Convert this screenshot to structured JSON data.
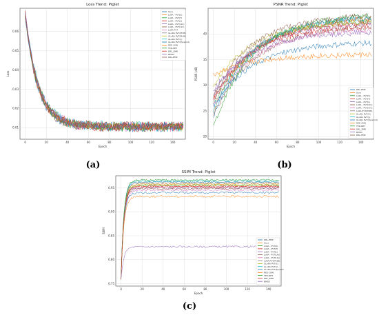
{
  "chart_data": [
    {
      "type": "line",
      "title": "Loss Trend: Piglet",
      "xlabel": "Epoch",
      "ylabel": "Loss",
      "xlim": [
        -5,
        152
      ],
      "ylim": [
        0.004,
        0.072
      ],
      "xticks": [
        0,
        20,
        40,
        60,
        80,
        100,
        120,
        140
      ],
      "yticks": [
        0.01,
        0.02,
        0.03,
        0.04,
        0.05,
        0.06
      ],
      "ytick_labels": [
        "0.01",
        "0.02",
        "0.03",
        "0.04",
        "0.05",
        "0.06"
      ],
      "grid": true,
      "legend_position": "top-right",
      "legend": [
        "Ours",
        "LoRA - PVT(S)",
        "LoRA - PVT(T)",
        "LoRA - PVT(L)",
        "LoRA - PVT(Uni)",
        "LoRA - PVT(Uni)",
        "LoRA PVT",
        "GLoRA PVT(Pt3B)",
        "GLoRA PVT(Pt3B)",
        "GLoRA PVT(L)",
        "GLoRA PVT(Pyramid)",
        "RED CNN",
        "TED-NET",
        "DRL_EMR",
        "BM3D",
        "DRL-EMP"
      ],
      "colors": [
        "#1f77b4",
        "#ff7f0e",
        "#2ca02c",
        "#d62728",
        "#9467bd",
        "#8c564b",
        "#e377c2",
        "#7f7f7f",
        "#bcbd22",
        "#17becf",
        "#1f77b4",
        "#ff7f0e",
        "#2ca02c",
        "#d62728",
        "#9467bd",
        "#8c564b"
      ],
      "series_model": {
        "start": 0.068,
        "floor": 0.0105,
        "decay_epochs": 12,
        "noise": 0.0018
      },
      "epochs": 150
    },
    {
      "type": "line",
      "title": "PSNR Trend: Piglet",
      "xlabel": "Epoch",
      "ylabel": "PSNR (dB)",
      "xlim": [
        -5,
        152
      ],
      "ylim": [
        19.5,
        45
      ],
      "xticks": [
        0,
        20,
        40,
        60,
        80,
        100,
        120,
        140
      ],
      "yticks": [
        20,
        25,
        30,
        35,
        40
      ],
      "ytick_labels": [
        "20",
        "25",
        "30",
        "35",
        "40"
      ],
      "grid": true,
      "legend_position": "bottom-right",
      "legend": [
        "DRL-EMP",
        "Ours",
        "LoRA - PVT(S)",
        "LoRA - PVT(T)",
        "LoRA - PVT(L)",
        "LoRA - PVT(Uni)",
        "LoRA - PVT(Uni)",
        "LoRA PVT(Pt3B)",
        "GLoRA PVT(S)",
        "GLoRA PVT(L)",
        "GLoRA PVT(Pyramid)",
        "RED CNN",
        "TED-NET",
        "DRL_EMR",
        "BM3D",
        "DRL-EMP"
      ],
      "colors": [
        "#1f77b4",
        "#ff7f0e",
        "#2ca02c",
        "#d62728",
        "#9467bd",
        "#8c564b",
        "#e377c2",
        "#7f7f7f",
        "#bcbd22",
        "#17becf",
        "#1f77b4",
        "#ff7f0e",
        "#2ca02c",
        "#d62728",
        "#9467bd",
        "#8c564b"
      ],
      "final_psnr": [
        43.5,
        43.2,
        42.8,
        42.5,
        42.0,
        41.5,
        41.0,
        43.0,
        42.6,
        43.4,
        38.5,
        36.0,
        44.0,
        41.8,
        40.5,
        43.8
      ],
      "start_psnr": [
        24,
        25,
        26,
        27,
        28,
        24,
        26,
        27,
        30,
        25,
        26,
        32,
        22,
        27,
        29,
        28
      ],
      "epochs": 150
    },
    {
      "type": "line",
      "title": "SSIM Trend: Piglet",
      "xlabel": "Epoch",
      "ylabel": "SSIM",
      "xlim": [
        -5,
        152
      ],
      "ylim": [
        0.745,
        0.975
      ],
      "xticks": [
        0,
        20,
        40,
        60,
        80,
        100,
        120,
        140
      ],
      "yticks": [
        0.75,
        0.8,
        0.85,
        0.9,
        0.95
      ],
      "ytick_labels": [
        "0.75",
        "0.80",
        "0.85",
        "0.90",
        "0.95"
      ],
      "grid": true,
      "legend_position": "bottom-right",
      "legend": [
        "DRL-EMP",
        "Ours",
        "LoRA - PVT(S)",
        "LoRA - PVT(T)",
        "LoRA - PVT(L)",
        "LoRA - PVT(Uni)",
        "LoRA - PVT(Uni)",
        "LoRA PVT(Pt3B)",
        "GLoRA PVT(S)",
        "GLoRA PVT(L)",
        "GLoRA PVT(Pyramid)",
        "RED CNN",
        "TED-NET",
        "DRL_EMR",
        "BM3D"
      ],
      "colors": [
        "#1f77b4",
        "#ff7f0e",
        "#2ca02c",
        "#d62728",
        "#9467bd",
        "#8c564b",
        "#e377c2",
        "#7f7f7f",
        "#bcbd22",
        "#17becf",
        "#1f77b4",
        "#ff7f0e",
        "#2ca02c",
        "#d62728",
        "#9467bd"
      ],
      "final_ssim": [
        0.962,
        0.958,
        0.955,
        0.953,
        0.95,
        0.948,
        0.945,
        0.96,
        0.956,
        0.964,
        0.94,
        0.932,
        0.966,
        0.952,
        0.827
      ],
      "epochs": 150
    }
  ],
  "captions": [
    "(a)",
    "(b)",
    "(c)"
  ]
}
